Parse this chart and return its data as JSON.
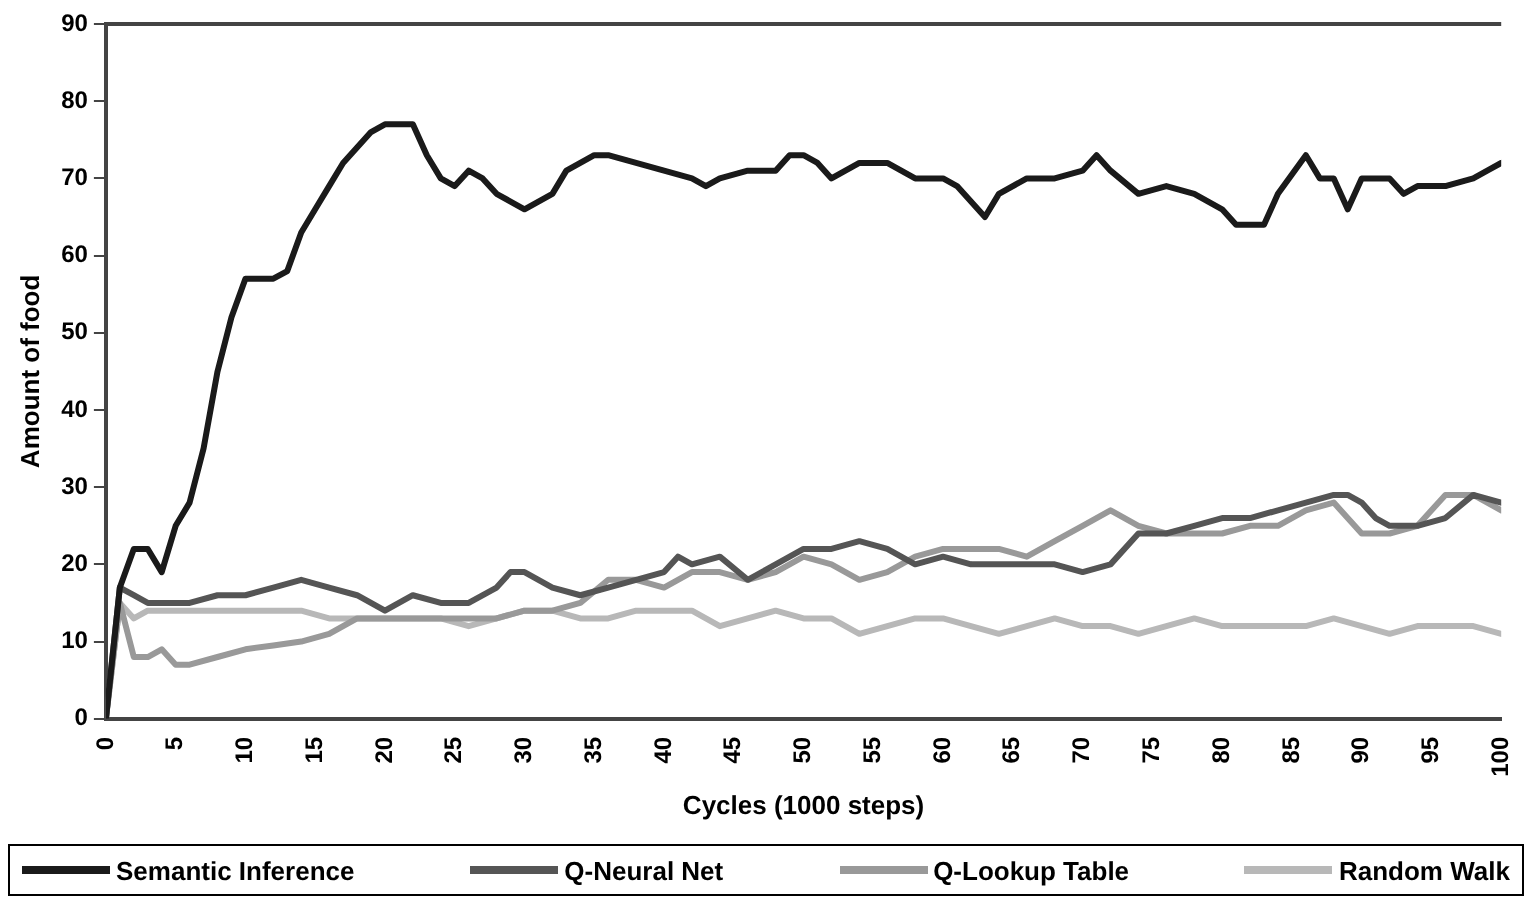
{
  "chart_data": {
    "type": "line",
    "xlabel": "Cycles (1000 steps)",
    "ylabel": "Amount of food",
    "xlim": [
      0,
      100
    ],
    "xticks": [
      0,
      5,
      10,
      15,
      20,
      25,
      30,
      35,
      40,
      45,
      50,
      55,
      60,
      65,
      70,
      75,
      80,
      85,
      90,
      95,
      100
    ],
    "ylim": [
      0,
      90
    ],
    "yticks": [
      0,
      10,
      20,
      30,
      40,
      50,
      60,
      70,
      80,
      90
    ],
    "grid": false,
    "legend": "bottom",
    "marker": "none",
    "line_style": "solid",
    "series": [
      {
        "name": "Semantic Inference",
        "color": "#1a1a1a",
        "x": [
          0,
          1,
          2,
          3,
          4,
          5,
          6,
          7,
          8,
          9,
          10,
          11,
          12,
          13,
          14,
          15,
          16,
          17,
          18,
          19,
          20,
          21,
          22,
          23,
          24,
          25,
          26,
          27,
          28,
          29,
          30,
          31,
          32,
          33,
          34,
          35,
          36,
          38,
          40,
          42,
          43,
          44,
          46,
          48,
          49,
          50,
          51,
          52,
          54,
          56,
          58,
          60,
          61,
          62,
          63,
          64,
          66,
          68,
          70,
          71,
          72,
          74,
          76,
          78,
          80,
          81,
          82,
          83,
          84,
          86,
          87,
          88,
          89,
          90,
          92,
          93,
          94,
          96,
          98,
          99,
          100
        ],
        "values": [
          0,
          17,
          22,
          22,
          19,
          25,
          28,
          35,
          45,
          52,
          57,
          57,
          57,
          58,
          63,
          66,
          69,
          72,
          74,
          76,
          77,
          77,
          77,
          73,
          70,
          69,
          71,
          70,
          68,
          67,
          66,
          67,
          68,
          71,
          72,
          73,
          73,
          72,
          71,
          70,
          69,
          70,
          71,
          71,
          73,
          73,
          72,
          70,
          72,
          72,
          70,
          70,
          69,
          67,
          65,
          68,
          70,
          70,
          71,
          73,
          71,
          68,
          69,
          68,
          66,
          64,
          64,
          64,
          68,
          73,
          70,
          70,
          66,
          70,
          70,
          68,
          69,
          69,
          70,
          71,
          72
        ]
      },
      {
        "name": "Q-Neural Net",
        "color": "#555555",
        "x": [
          0,
          1,
          2,
          3,
          4,
          6,
          8,
          10,
          12,
          14,
          16,
          18,
          20,
          22,
          24,
          26,
          28,
          29,
          30,
          32,
          34,
          36,
          38,
          40,
          41,
          42,
          44,
          46,
          48,
          50,
          52,
          54,
          56,
          58,
          60,
          62,
          64,
          66,
          68,
          70,
          72,
          74,
          76,
          78,
          80,
          82,
          84,
          86,
          88,
          89,
          90,
          91,
          92,
          94,
          96,
          98,
          100
        ],
        "values": [
          0,
          17,
          16,
          15,
          15,
          15,
          16,
          16,
          17,
          18,
          17,
          16,
          14,
          16,
          15,
          15,
          17,
          19,
          19,
          17,
          16,
          17,
          18,
          19,
          21,
          20,
          21,
          18,
          20,
          22,
          22,
          23,
          22,
          20,
          21,
          20,
          20,
          20,
          20,
          19,
          20,
          24,
          24,
          25,
          26,
          26,
          27,
          28,
          29,
          29,
          28,
          26,
          25,
          25,
          26,
          29,
          28
        ]
      },
      {
        "name": "Q-Lookup Table",
        "color": "#999999",
        "x": [
          0,
          1,
          2,
          3,
          4,
          5,
          6,
          8,
          10,
          12,
          14,
          16,
          17,
          18,
          20,
          22,
          24,
          26,
          28,
          30,
          32,
          34,
          36,
          38,
          40,
          42,
          44,
          46,
          48,
          50,
          52,
          54,
          56,
          58,
          60,
          62,
          64,
          66,
          68,
          70,
          72,
          74,
          76,
          78,
          80,
          82,
          84,
          86,
          88,
          90,
          92,
          94,
          96,
          98,
          100
        ],
        "values": [
          0,
          15,
          8,
          8,
          9,
          7,
          7,
          8,
          9,
          9.5,
          10,
          11,
          12,
          13,
          13,
          13,
          13,
          13,
          13,
          14,
          14,
          15,
          18,
          18,
          17,
          19,
          19,
          18,
          19,
          21,
          20,
          18,
          19,
          21,
          22,
          22,
          22,
          21,
          23,
          25,
          27,
          25,
          24,
          24,
          24,
          25,
          25,
          27,
          28,
          24,
          24,
          25,
          29,
          29,
          27
        ]
      },
      {
        "name": "Random Walk",
        "color": "#b8b8b8",
        "x": [
          0,
          1,
          2,
          3,
          4,
          6,
          8,
          10,
          12,
          14,
          16,
          18,
          20,
          22,
          24,
          26,
          28,
          30,
          32,
          34,
          36,
          38,
          40,
          42,
          44,
          46,
          48,
          50,
          52,
          54,
          56,
          58,
          60,
          62,
          64,
          66,
          68,
          70,
          72,
          74,
          76,
          78,
          80,
          82,
          84,
          86,
          88,
          90,
          92,
          94,
          96,
          98,
          100
        ],
        "values": [
          0,
          15,
          13,
          14,
          14,
          14,
          14,
          14,
          14,
          14,
          13,
          13,
          13,
          13,
          13,
          12,
          13,
          14,
          14,
          13,
          13,
          14,
          14,
          14,
          12,
          13,
          14,
          13,
          13,
          11,
          12,
          13,
          13,
          12,
          11,
          12,
          13,
          12,
          12,
          11,
          12,
          13,
          12,
          12,
          12,
          12,
          13,
          12,
          11,
          12,
          12,
          12,
          11
        ]
      }
    ]
  }
}
